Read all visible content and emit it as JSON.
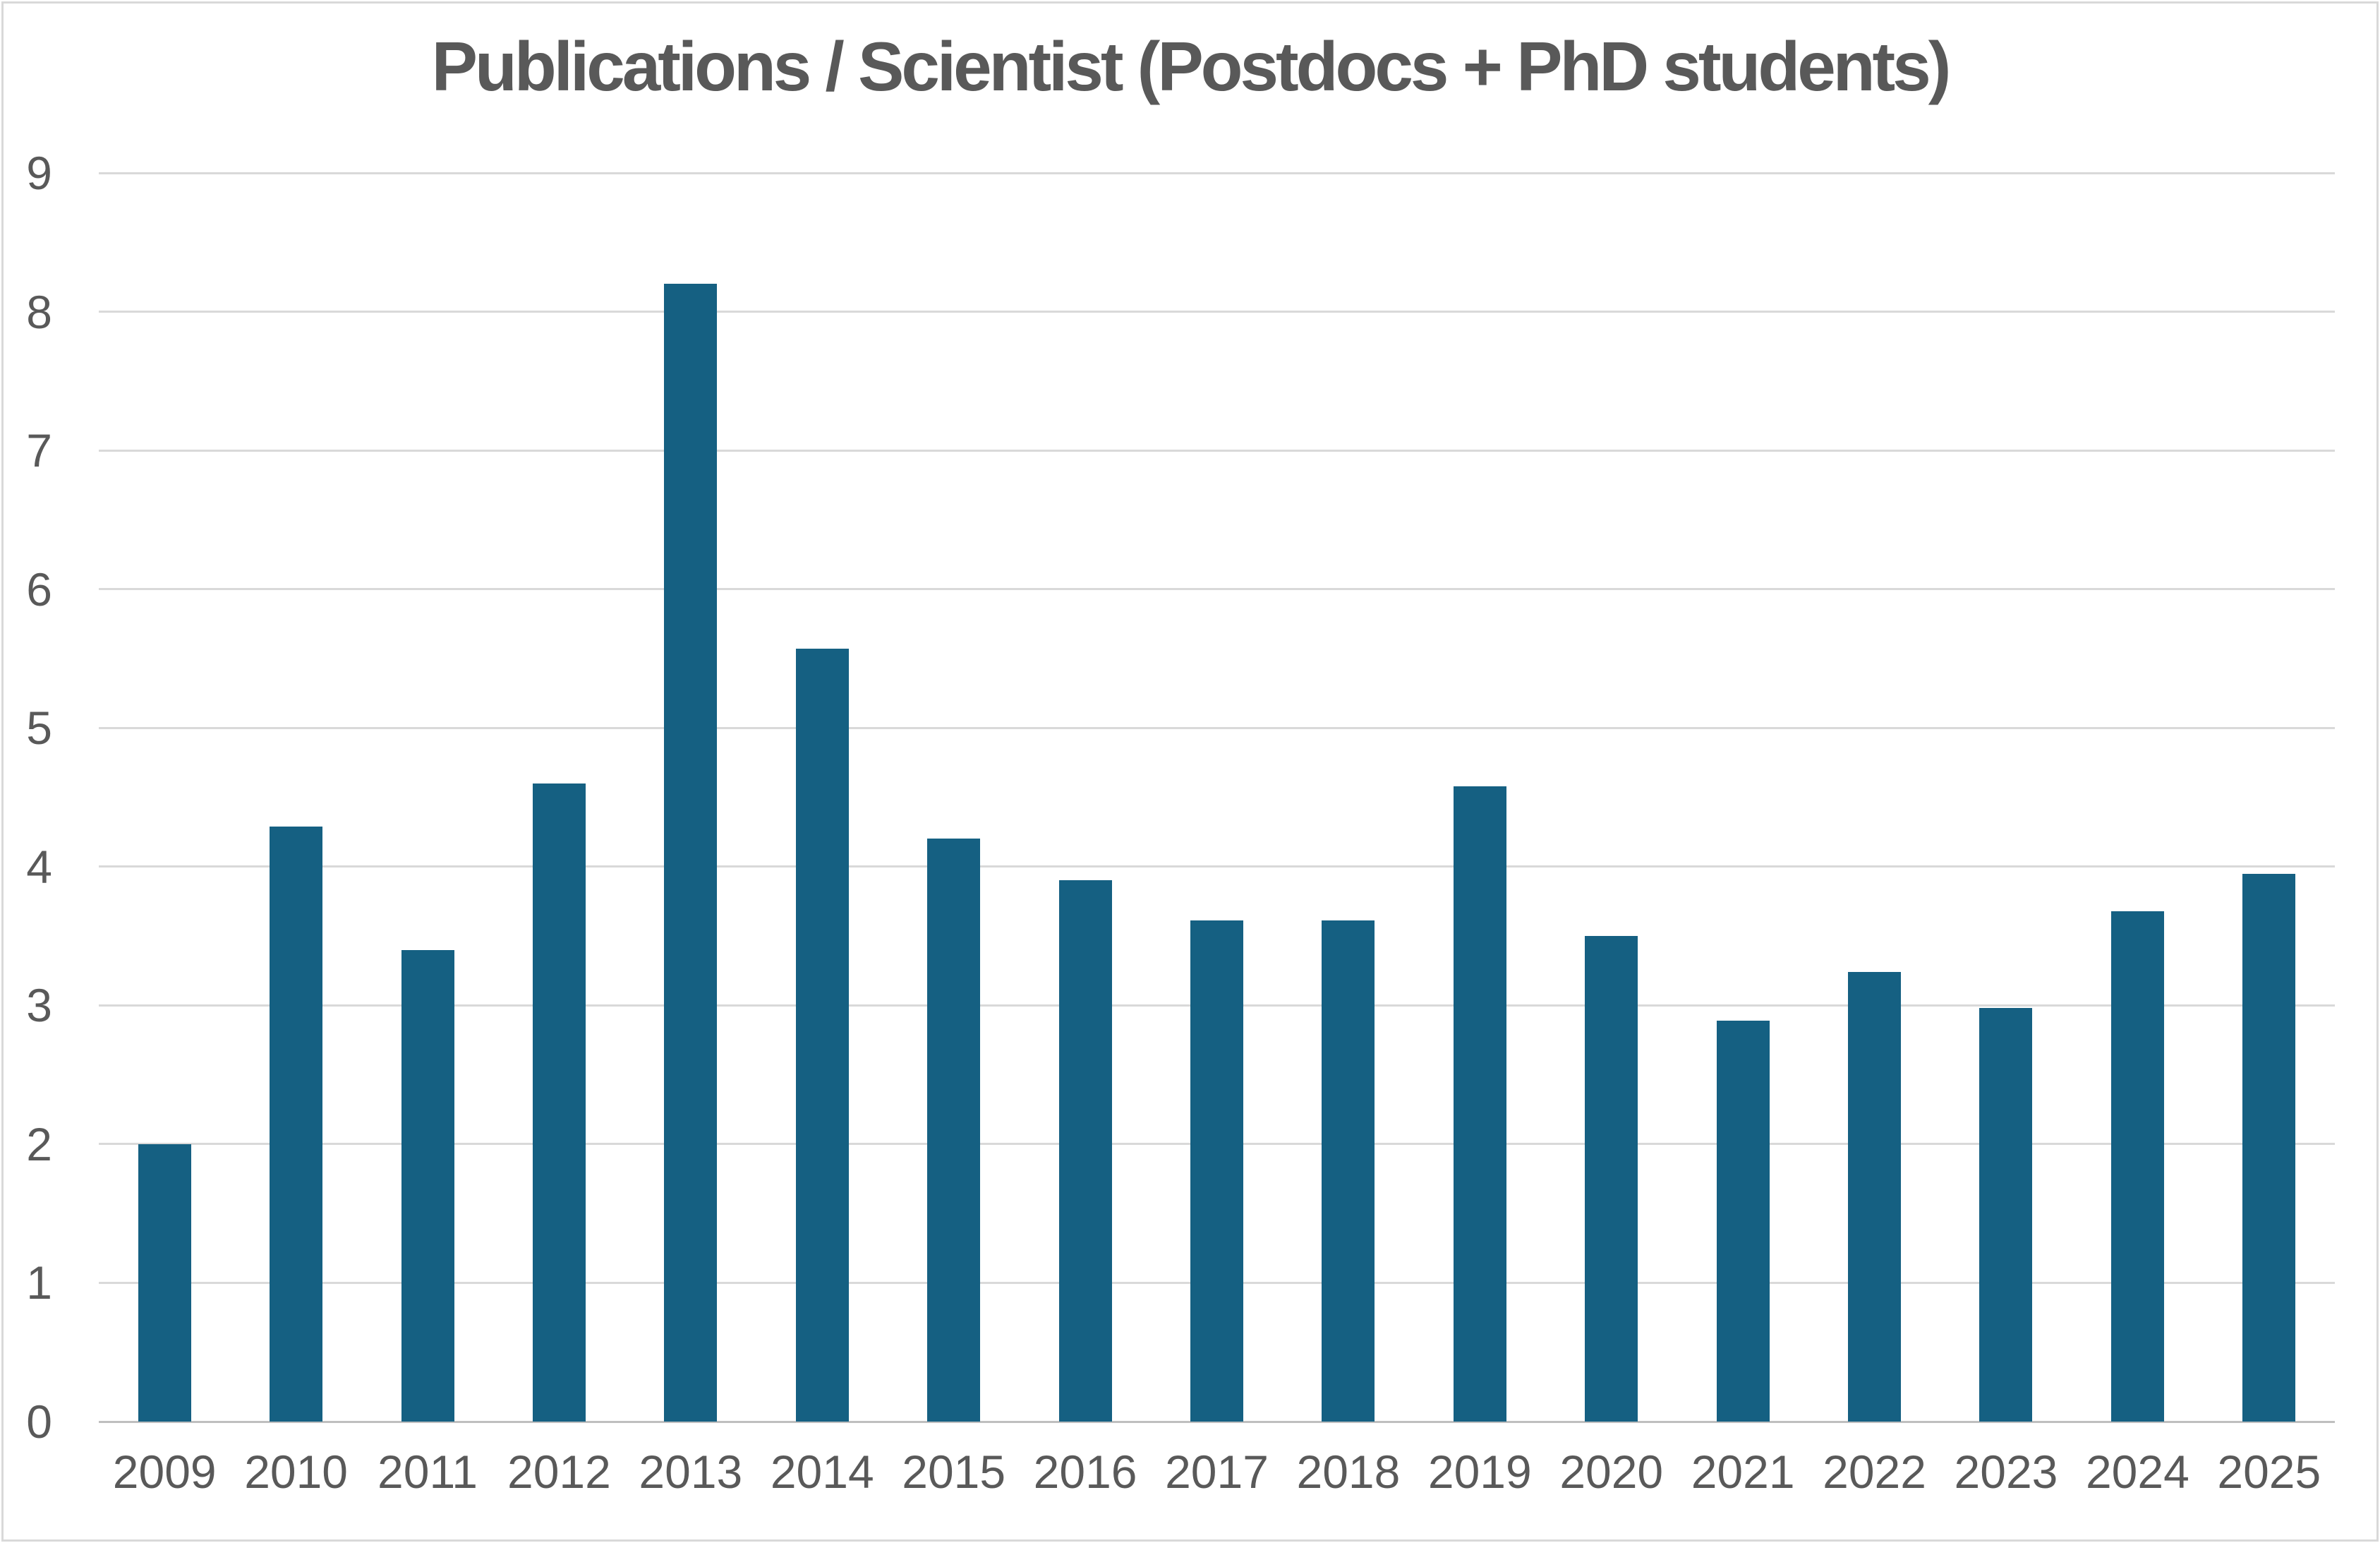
{
  "title": "Publications / Scientist (Postdocs + PhD students)",
  "chart_data": {
    "type": "bar",
    "title": "Publications / Scientist (Postdocs + PhD students)",
    "categories": [
      "2009",
      "2010",
      "2011",
      "2012",
      "2013",
      "2014",
      "2015",
      "2016",
      "2017",
      "2018",
      "2019",
      "2020",
      "2021",
      "2022",
      "2023",
      "2024",
      "2025"
    ],
    "values": [
      2.0,
      4.29,
      3.4,
      4.6,
      8.2,
      5.57,
      4.2,
      3.9,
      3.61,
      3.61,
      4.58,
      3.5,
      2.89,
      3.24,
      2.98,
      3.68,
      3.95
    ],
    "xlabel": "",
    "ylabel": "",
    "ylim": [
      0,
      9
    ],
    "yticks": [
      0,
      1,
      2,
      3,
      4,
      5,
      6,
      7,
      8,
      9
    ],
    "grid": true,
    "legend": false,
    "colors": {
      "bar_fill": "#156082",
      "gridline": "#d9d9d9",
      "axis_line": "#bfbfbf",
      "text": "#595959",
      "frame_border": "#d9d9d9",
      "background": "#ffffff"
    }
  }
}
